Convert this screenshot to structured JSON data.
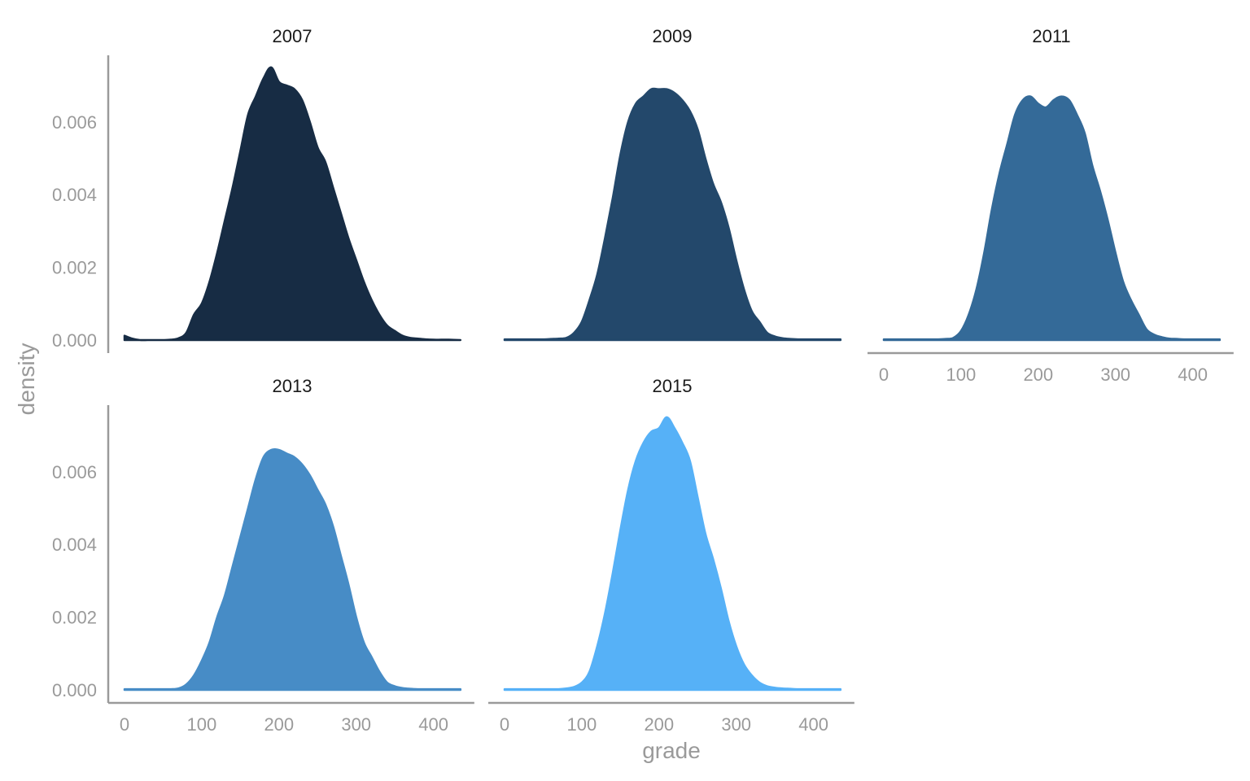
{
  "chart_data": {
    "type": "area",
    "subtype": "faceted density",
    "xlabel": "grade",
    "ylabel": "density",
    "xlim": [
      0,
      435
    ],
    "ylim": [
      0,
      0.0075
    ],
    "x_ticks": [
      0,
      100,
      200,
      300,
      400
    ],
    "x_tick_labels": [
      "0",
      "100",
      "200",
      "300",
      "400"
    ],
    "y_ticks": [
      0,
      0.002,
      0.004,
      0.006
    ],
    "y_tick_labels": [
      "0.000",
      "0.002",
      "0.004",
      "0.006"
    ],
    "grid": false,
    "legend": "none",
    "x": [
      0,
      10,
      20,
      30,
      40,
      50,
      60,
      70,
      80,
      90,
      100,
      110,
      120,
      130,
      140,
      150,
      160,
      170,
      180,
      190,
      200,
      210,
      220,
      230,
      240,
      250,
      260,
      270,
      280,
      290,
      300,
      310,
      320,
      330,
      340,
      350,
      360,
      370,
      380,
      390,
      400,
      410,
      420,
      435
    ],
    "panels": [
      {
        "label": "2007",
        "color": "#172c44",
        "values": [
          0.00012,
          4e-05,
          0.0,
          0.0,
          0.0,
          0.0,
          1e-05,
          5e-05,
          0.0002,
          0.0007,
          0.001,
          0.0016,
          0.0024,
          0.0033,
          0.0042,
          0.0052,
          0.0062,
          0.0067,
          0.0072,
          0.0075,
          0.0071,
          0.007,
          0.0069,
          0.0066,
          0.006,
          0.0053,
          0.0049,
          0.0042,
          0.0035,
          0.0028,
          0.0022,
          0.0016,
          0.0011,
          0.0007,
          0.0004,
          0.00025,
          0.00012,
          6e-05,
          4e-05,
          2e-05,
          1e-05,
          1e-05,
          1e-05,
          0.0
        ]
      },
      {
        "label": "2009",
        "color": "#23486b",
        "values": [
          2e-05,
          2e-05,
          2e-05,
          2e-05,
          2e-05,
          2e-05,
          3e-05,
          4e-05,
          6e-05,
          0.0002,
          0.0005,
          0.0011,
          0.0018,
          0.0028,
          0.0039,
          0.0051,
          0.006,
          0.0065,
          0.0067,
          0.0069,
          0.0069,
          0.0069,
          0.0068,
          0.0066,
          0.0063,
          0.0058,
          0.005,
          0.0043,
          0.0038,
          0.0031,
          0.0022,
          0.0014,
          0.0008,
          0.0005,
          0.0002,
          0.0001,
          5e-05,
          3e-05,
          2e-05,
          2e-05,
          2e-05,
          2e-05,
          2e-05,
          2e-05
        ]
      },
      {
        "label": "2011",
        "color": "#346a98",
        "values": [
          2e-05,
          2e-05,
          2e-05,
          2e-05,
          2e-05,
          2e-05,
          2e-05,
          2e-05,
          3e-05,
          6e-05,
          0.00025,
          0.0007,
          0.0014,
          0.0024,
          0.0036,
          0.0046,
          0.0054,
          0.0062,
          0.0066,
          0.0067,
          0.0065,
          0.0064,
          0.0066,
          0.0067,
          0.0066,
          0.0062,
          0.0057,
          0.0048,
          0.0041,
          0.0033,
          0.0024,
          0.0016,
          0.0011,
          0.0007,
          0.0003,
          0.00015,
          8e-05,
          4e-05,
          3e-05,
          2e-05,
          2e-05,
          2e-05,
          2e-05,
          2e-05
        ]
      },
      {
        "label": "2013",
        "color": "#478cc6",
        "values": [
          2e-05,
          2e-05,
          2e-05,
          2e-05,
          2e-05,
          2e-05,
          2e-05,
          4e-05,
          0.00015,
          0.0004,
          0.0008,
          0.0013,
          0.002,
          0.0026,
          0.0034,
          0.0042,
          0.005,
          0.0058,
          0.0064,
          0.0066,
          0.0066,
          0.0065,
          0.0064,
          0.0062,
          0.0059,
          0.0055,
          0.0051,
          0.0045,
          0.0037,
          0.0029,
          0.002,
          0.0013,
          0.0009,
          0.0005,
          0.0002,
          0.0001,
          5e-05,
          3e-05,
          2e-05,
          2e-05,
          2e-05,
          2e-05,
          2e-05,
          2e-05
        ]
      },
      {
        "label": "2015",
        "color": "#56b1f7",
        "values": [
          2e-05,
          2e-05,
          2e-05,
          2e-05,
          2e-05,
          2e-05,
          2e-05,
          2e-05,
          4e-05,
          8e-05,
          0.0002,
          0.0005,
          0.0012,
          0.0021,
          0.0032,
          0.0044,
          0.0055,
          0.0063,
          0.0068,
          0.0071,
          0.0072,
          0.0075,
          0.0072,
          0.0068,
          0.0063,
          0.0053,
          0.0043,
          0.0036,
          0.0028,
          0.0019,
          0.0012,
          0.0007,
          0.0004,
          0.0002,
          0.0001,
          6e-05,
          4e-05,
          3e-05,
          2e-05,
          2e-05,
          2e-05,
          2e-05,
          2e-05,
          2e-05
        ]
      }
    ]
  }
}
